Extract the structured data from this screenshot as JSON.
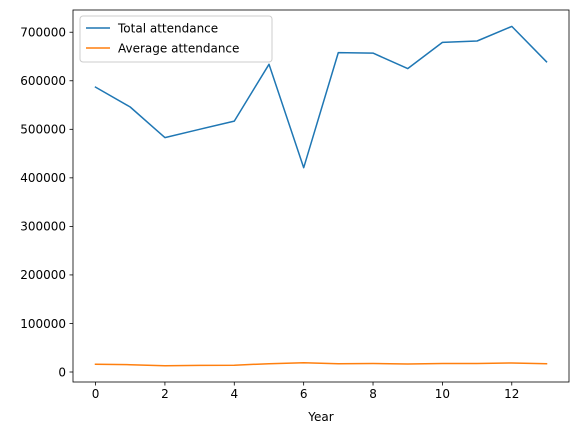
{
  "chart_data": {
    "type": "line",
    "title": "",
    "xlabel": "Year",
    "ylabel": "",
    "x": [
      0,
      1,
      2,
      3,
      4,
      5,
      6,
      7,
      8,
      9,
      10,
      11,
      12,
      13
    ],
    "series": [
      {
        "name": "Total attendance",
        "color": "#1f77b4",
        "values": [
          587000,
          546000,
          483000,
          500000,
          517000,
          634000,
          421000,
          658000,
          657000,
          625000,
          679000,
          682000,
          712000,
          639000
        ]
      },
      {
        "name": "Average attendance",
        "color": "#ff7f0e",
        "values": [
          16000,
          15000,
          13000,
          13500,
          14000,
          17000,
          19000,
          17000,
          17500,
          16500,
          17500,
          17500,
          18500,
          17000
        ]
      }
    ],
    "xlim": [
      -0.65,
      13.65
    ],
    "ylim": [
      -20600,
      745800
    ],
    "xticks": [
      0,
      2,
      4,
      6,
      8,
      10,
      12
    ],
    "yticks": [
      0,
      100000,
      200000,
      300000,
      400000,
      500000,
      600000,
      700000
    ],
    "grid": false,
    "legend_position": "upper-left"
  }
}
